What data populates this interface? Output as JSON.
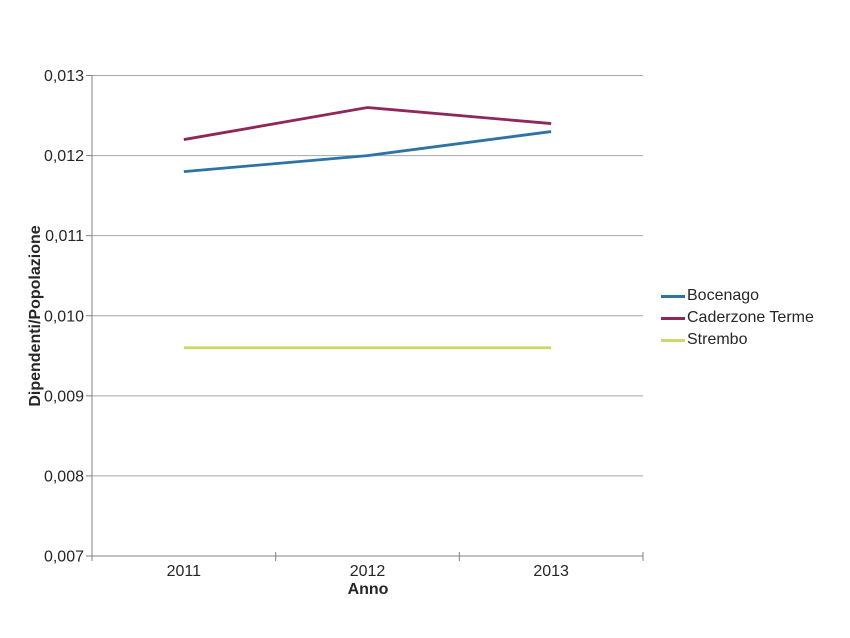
{
  "chart_data": {
    "type": "line",
    "title": "",
    "xlabel": "Anno",
    "ylabel": "Dipendenti/Popolazione",
    "categories": [
      "2011",
      "2012",
      "2013"
    ],
    "series": [
      {
        "name": "Bocenago",
        "color": "#2D73A6",
        "values": [
          0.0118,
          0.012,
          0.0123
        ]
      },
      {
        "name": "Caderzone Terme",
        "color": "#90275B",
        "values": [
          0.0122,
          0.0126,
          0.0124
        ]
      },
      {
        "name": "Strembo",
        "color": "#CBD966",
        "values": [
          0.0096,
          0.0096,
          0.0096
        ]
      }
    ],
    "ylim": [
      0.007,
      0.013
    ],
    "ytick_step": 0.001,
    "ytick_labels": [
      "0,007",
      "0,008",
      "0,009",
      "0,010",
      "0,011",
      "0,012",
      "0,013"
    ],
    "grid": true,
    "legend_position": "right"
  },
  "colors": {
    "background": "#FFFFFF",
    "axis": "#808080",
    "gridline": "#A6A6A6",
    "text": "#262626"
  }
}
